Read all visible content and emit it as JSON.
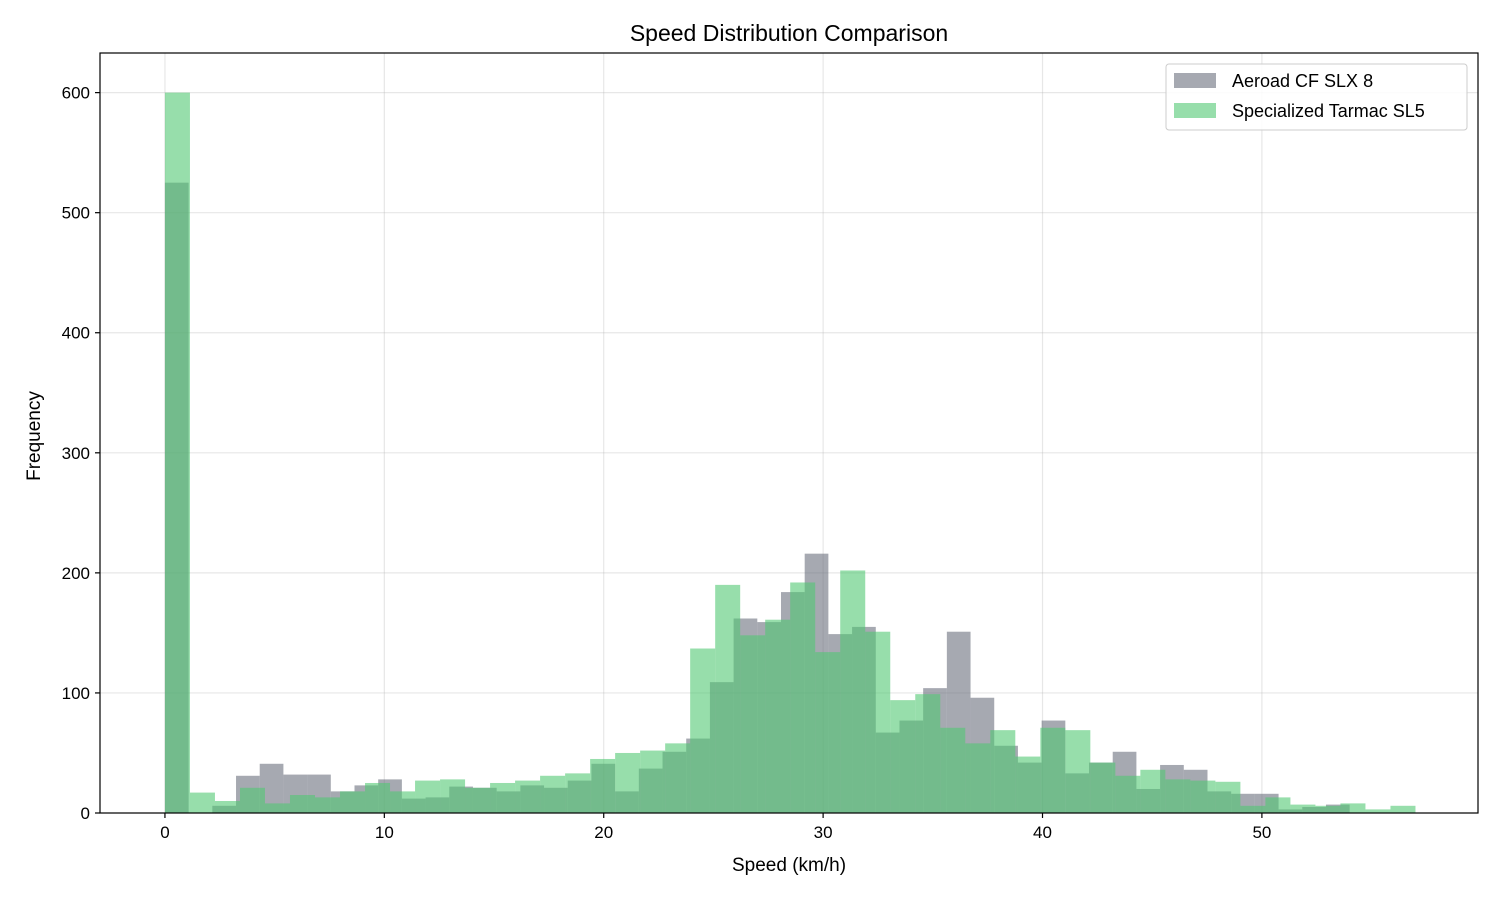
{
  "chart_data": {
    "type": "histogram",
    "title": "Speed Distribution Comparison",
    "xlabel": "Speed (km/h)",
    "ylabel": "Frequency",
    "xlim": [
      -2.96,
      59.85
    ],
    "ylim": [
      0,
      633
    ],
    "xticks": [
      0,
      10,
      20,
      30,
      40,
      50
    ],
    "yticks": [
      0,
      100,
      200,
      300,
      400,
      500,
      600
    ],
    "grid": true,
    "legend_position": "top-right",
    "series": [
      {
        "name": "Aeroad CF SLX 8",
        "color": "#6b707d",
        "opacity": 0.6,
        "bin_range": [
          0,
          54
        ],
        "values": [
          525,
          0,
          6,
          31,
          41,
          32,
          32,
          18,
          23,
          28,
          12,
          13,
          22,
          21,
          18,
          23,
          21,
          27,
          41,
          18,
          37,
          51,
          62,
          109,
          162,
          159,
          184,
          216,
          149,
          155,
          67,
          77,
          104,
          151,
          96,
          56,
          42,
          77,
          33,
          42,
          51,
          20,
          40,
          36,
          18,
          16,
          16,
          3,
          5,
          7
        ]
      },
      {
        "name": "Specialized Tarmac SL5",
        "color": "#52c873",
        "opacity": 0.6,
        "bin_range": [
          0,
          57
        ],
        "values": [
          600,
          17,
          10,
          21,
          8,
          15,
          13,
          18,
          25,
          18,
          27,
          28,
          21,
          25,
          27,
          31,
          33,
          45,
          50,
          52,
          58,
          137,
          190,
          148,
          161,
          192,
          134,
          202,
          151,
          94,
          99,
          71,
          58,
          69,
          47,
          71,
          69,
          42,
          31,
          36,
          28,
          27,
          26,
          6,
          13,
          7,
          6,
          8,
          3,
          6
        ]
      }
    ]
  }
}
